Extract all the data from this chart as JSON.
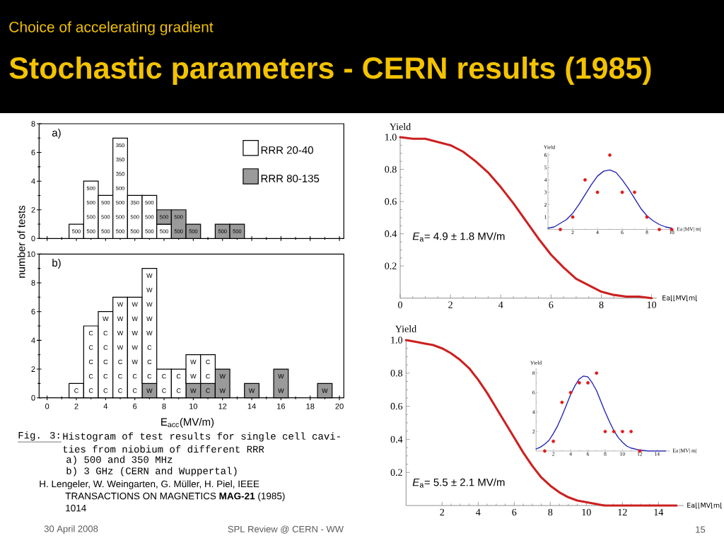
{
  "chart_data": [
    {
      "type": "bar",
      "title": "Stochastic parameters - CERN results (1985)",
      "subtitle": "Choice of accelerating gradient",
      "ylabel": "number of tests",
      "stacked": true,
      "x": [
        2,
        3,
        4,
        5,
        6,
        7,
        8,
        9,
        10,
        11,
        12,
        13
      ],
      "series": [
        {
          "name": "RRR 20-40",
          "color": "#ffffff",
          "values": [
            1,
            4,
            3,
            7,
            3,
            3,
            1,
            0,
            0,
            0,
            0,
            0
          ]
        },
        {
          "name": "RRR 80-135",
          "color": "#9a9a9a",
          "values": [
            0,
            0,
            0,
            0,
            0,
            0,
            1,
            2,
            1,
            0,
            1,
            1
          ]
        }
      ],
      "xlim": [
        -0.55,
        20.3
      ],
      "ylim": [
        0,
        8
      ],
      "xticks": [
        0,
        2,
        4,
        6,
        8,
        10,
        12,
        14,
        16,
        18,
        20
      ],
      "yticks": [
        0,
        2,
        4,
        6,
        8
      ],
      "tick_labels": "y",
      "legend": "top right",
      "annotations": [
        "a)",
        "500",
        "500",
        "500",
        "500",
        "500",
        "500",
        "500",
        "500",
        "500",
        "500",
        "500",
        "500",
        "350",
        "350",
        "350",
        "500",
        "500",
        "350",
        "500",
        "500",
        "500",
        "500",
        "500",
        "500",
        "500",
        "500",
        "500",
        "500",
        "30 April 2008",
        "SPL Review @ CERN - WW",
        "15"
      ]
    },
    {
      "type": "bar",
      "xlabel": "E$_{acc}$(MV/m)",
      "stacked": true,
      "x": [
        2,
        3,
        4,
        5,
        6,
        7,
        8,
        9,
        10,
        11,
        12,
        13,
        14,
        15,
        16,
        17,
        18,
        19
      ],
      "series": [
        {
          "color": "#9a9a9a",
          "values": [
            0,
            0,
            0,
            0,
            0,
            1,
            0,
            0,
            1,
            1,
            2,
            0,
            1,
            0,
            2,
            0,
            0,
            1
          ]
        },
        {
          "color": "#ffffff",
          "values": [
            1,
            5,
            6,
            7,
            7,
            8,
            2,
            2,
            2,
            2,
            0,
            0,
            0,
            0,
            0,
            0,
            0,
            0
          ]
        }
      ],
      "xlim": [
        -0.55,
        20.3
      ],
      "ylim": [
        0,
        10
      ],
      "xticks": [
        0,
        2,
        4,
        6,
        8,
        10,
        12,
        14,
        16,
        18,
        20
      ],
      "yticks": [
        0,
        2,
        4,
        6,
        8,
        10
      ],
      "annotations": [
        "b)",
        "C",
        "C",
        "C",
        "C",
        "C",
        "C",
        "C",
        "C",
        "C",
        "C",
        "C",
        "W",
        "C",
        "C",
        "C",
        "W",
        "W",
        "W",
        "W",
        "C",
        "C",
        "W",
        "W",
        "W",
        "W",
        "W",
        "W",
        "C",
        "C",
        "C",
        "W",
        "W",
        "W",
        "W",
        "W",
        "C",
        "C",
        "C",
        "C",
        "W",
        "W",
        "W",
        "C",
        "C",
        "C",
        "W",
        "W",
        "W",
        "W",
        "W",
        "W",
        "Fig. 3:",
        "Histogram of test results for single cell cavi-",
        "ties from niobium of different RRR",
        "a) 500 and 350 MHz",
        "b) 3 GHz (CERN and Wuppertal)",
        "H. Lengeler, W. Weingarten, G. Müller, H. Piel, IEEE TRANSACTIONS ON MAGNETICS **MAG-21** (1985) 1014"
      ]
    },
    {
      "type": "line",
      "xlabel": "Ea⌊⌊MV⌊m⌊",
      "ylabel": "Yield",
      "color": "#cc2020",
      "x": [
        0,
        0.5,
        1,
        1.5,
        2,
        2.5,
        3,
        3.5,
        4,
        4.5,
        5,
        5.5,
        6,
        6.5,
        7,
        7.5,
        8,
        8.5,
        9,
        9.5,
        10
      ],
      "values": [
        1.0,
        0.99,
        0.99,
        0.97,
        0.95,
        0.91,
        0.85,
        0.78,
        0.69,
        0.59,
        0.48,
        0.37,
        0.27,
        0.19,
        0.12,
        0.08,
        0.04,
        0.02,
        0.01,
        0.01,
        0.0
      ],
      "xlim": [
        0,
        10.2
      ],
      "ylim": [
        0,
        1.0
      ],
      "xticks": [
        0,
        2,
        4,
        6,
        8,
        10
      ],
      "yticks": [
        0.2,
        0.4,
        0.6,
        0.8,
        {
          "value": 1.0,
          "label": "1.0"
        }
      ],
      "annotations": [
        "*E*$_{a}$= 4.9 ± 1.8 MV/m"
      ]
    },
    {
      "type": "scatter",
      "xlabel": "Ea |MV| m|",
      "ylabel": "Yield",
      "marker": "circle",
      "series": [
        {
          "type": "line",
          "marker": "none",
          "color": "#1f1fb4",
          "x": [
            0,
            0.5,
            1,
            1.5,
            2,
            2.5,
            3,
            3.5,
            4,
            4.5,
            5,
            5.5,
            6,
            6.5,
            7,
            7.5,
            8,
            8.5,
            9,
            9.5,
            10
          ],
          "values": [
            0.1,
            0.2,
            0.5,
            0.8,
            1.3,
            2.0,
            2.8,
            3.6,
            4.3,
            4.7,
            4.8,
            4.6,
            4.0,
            3.3,
            2.5,
            1.7,
            1.1,
            0.7,
            0.4,
            0.2,
            0.1
          ]
        },
        {
          "color": "#e01b1b",
          "x": [
            1,
            2,
            3,
            4,
            5,
            6,
            7,
            8,
            9,
            10
          ],
          "values": [
            0,
            1,
            4,
            3,
            6,
            3,
            3,
            1,
            0,
            0
          ]
        }
      ],
      "xlim": [
        0,
        10.2
      ],
      "ylim": [
        0,
        6.2
      ],
      "xticks": [
        2,
        4,
        6,
        8,
        10
      ],
      "yticks": [
        1,
        2,
        3,
        4,
        5,
        6
      ]
    },
    {
      "type": "line",
      "xlabel": "Ea⌊⌊MV⌊m⌊",
      "ylabel": "Yield",
      "color": "#cc2020",
      "x": [
        0,
        0.5,
        1,
        1.5,
        2,
        2.5,
        3,
        3.5,
        4,
        4.5,
        5,
        5.5,
        6,
        6.5,
        7,
        7.5,
        8,
        8.5,
        9,
        9.5,
        10,
        10.5,
        11,
        12,
        13,
        14,
        15
      ],
      "values": [
        1.0,
        0.99,
        0.98,
        0.97,
        0.95,
        0.92,
        0.88,
        0.83,
        0.76,
        0.68,
        0.59,
        0.5,
        0.41,
        0.32,
        0.24,
        0.17,
        0.12,
        0.08,
        0.05,
        0.03,
        0.02,
        0.01,
        0.0,
        0.0,
        0.0,
        0.0,
        0.0
      ],
      "xlim": [
        0,
        15.4
      ],
      "ylim": [
        0,
        1.0
      ],
      "xticks": [
        2,
        4,
        6,
        8,
        10,
        12,
        14
      ],
      "yticks": [
        0.2,
        0.4,
        0.6,
        0.8,
        {
          "value": 1.0,
          "label": "1.0"
        }
      ],
      "annotations": [
        "*E*$_{a}$= 5.5 ± 2.1 MV/m"
      ]
    },
    {
      "type": "scatter",
      "xlabel": "Ea |MV| m|",
      "ylabel": "Yield",
      "marker": "circle",
      "series": [
        {
          "type": "line",
          "marker": "none",
          "color": "#1f1fb4",
          "x": [
            0,
            0.5,
            1,
            1.5,
            2,
            2.5,
            3,
            3.5,
            4,
            4.5,
            5,
            5.5,
            6,
            6.5,
            7,
            7.5,
            8,
            8.5,
            9,
            9.5,
            10,
            10.5,
            11,
            12,
            13,
            14,
            15
          ],
          "values": [
            0.2,
            0.4,
            0.7,
            1.1,
            1.8,
            2.6,
            3.6,
            4.7,
            5.8,
            6.7,
            7.4,
            7.7,
            7.6,
            7.0,
            6.2,
            5.1,
            4.0,
            3.0,
            2.1,
            1.4,
            0.9,
            0.5,
            0.3,
            0.1,
            0.0,
            0.0,
            0.0
          ]
        },
        {
          "color": "#e01b1b",
          "x": [
            1,
            2,
            3,
            4,
            5,
            6,
            7,
            8,
            9,
            10,
            11,
            12
          ],
          "values": [
            0,
            1,
            5,
            6,
            7,
            7,
            8,
            2,
            2,
            2,
            2,
            0
          ]
        }
      ],
      "xlim": [
        0,
        15.5
      ],
      "ylim": [
        0,
        8.5
      ],
      "xticks": [
        2,
        4,
        6,
        8,
        10,
        12,
        14
      ],
      "yticks": [
        2,
        4,
        6,
        8
      ]
    }
  ]
}
